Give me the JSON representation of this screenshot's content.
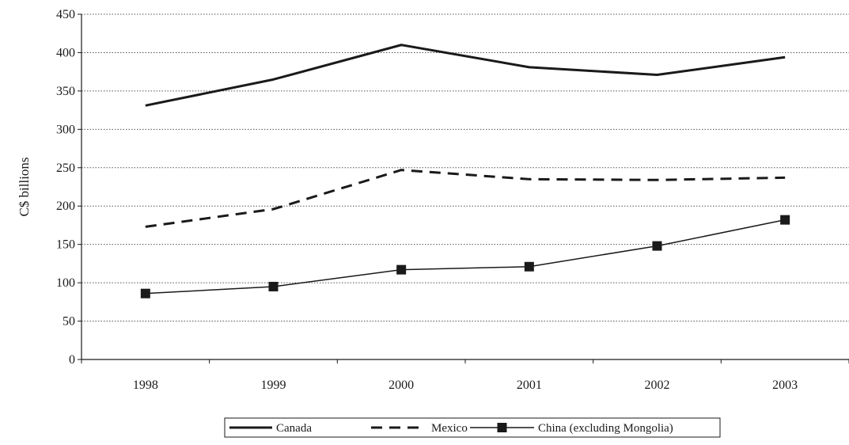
{
  "chart_data": {
    "type": "line",
    "title": "",
    "xlabel": "",
    "ylabel": "C$ billions",
    "categories": [
      "1998",
      "1999",
      "2000",
      "2001",
      "2002",
      "2003"
    ],
    "ylim": [
      0,
      450
    ],
    "yticks": [
      0,
      50,
      100,
      150,
      200,
      250,
      300,
      350,
      400,
      450
    ],
    "grid": "horizontal dotted",
    "legend_position": "bottom",
    "series": [
      {
        "name": "Canada",
        "style": "solid-thick",
        "color": "#1a1a1a",
        "values": [
          331,
          365,
          410,
          381,
          371,
          394
        ]
      },
      {
        "name": "Mexico",
        "style": "dashed",
        "color": "#1a1a1a",
        "values": [
          173,
          196,
          247,
          235,
          234,
          237
        ]
      },
      {
        "name": "China (excluding Mongolia)",
        "style": "solid-thin-square-markers",
        "color": "#1a1a1a",
        "values": [
          86,
          95,
          117,
          121,
          148,
          182
        ]
      }
    ]
  }
}
